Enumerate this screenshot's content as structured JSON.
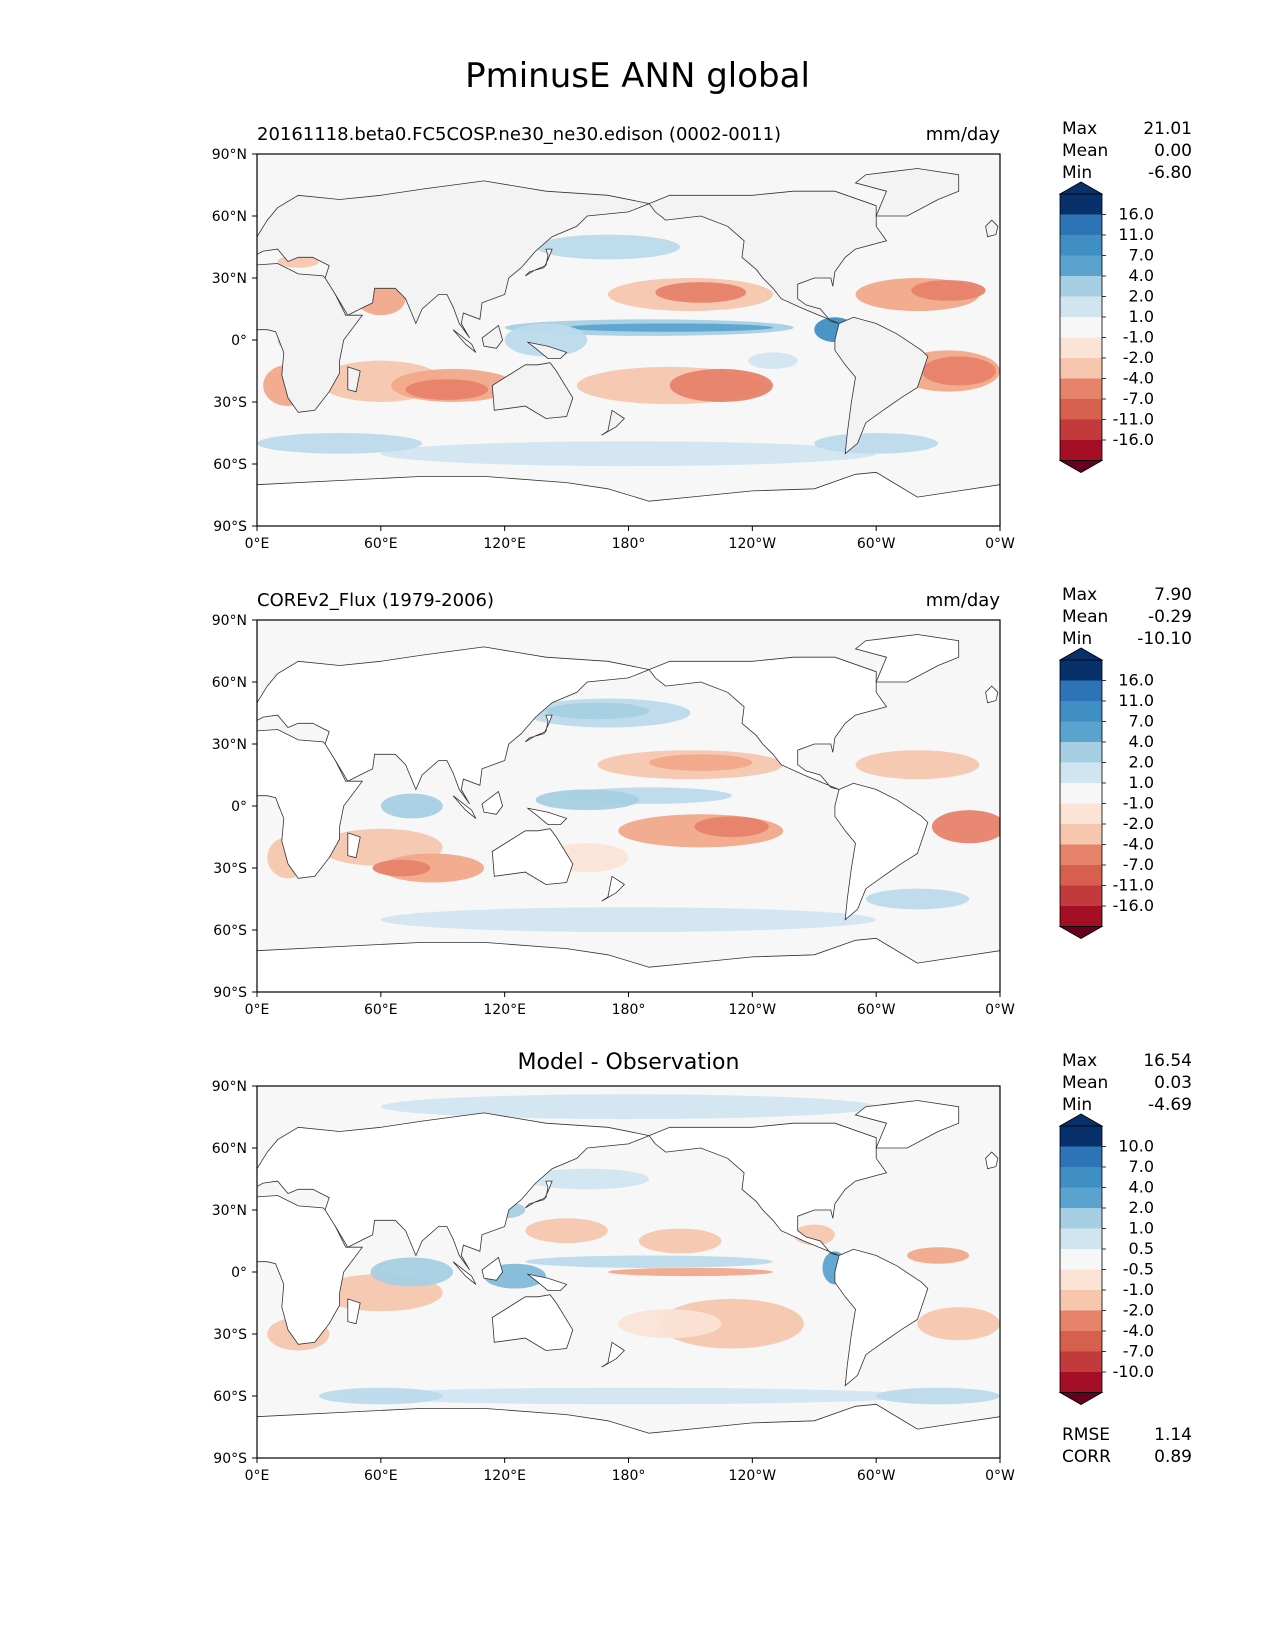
{
  "title": "PminusE ANN global",
  "colors": {
    "pos": [
      "#d1e5f0",
      "#bcdaeb",
      "#a6cfe3",
      "#82bad9",
      "#5ba3cf",
      "#3f8ec4",
      "#2c74b5",
      "#1f5ea6",
      "#08306b"
    ],
    "neg": [
      "#fbe3d6",
      "#f6c6ae",
      "#f1a88a",
      "#e7826a",
      "#d6604d",
      "#c23a3b",
      "#a50f26",
      "#67001f"
    ],
    "mid": "#f7f7f7",
    "land": "#ffffff",
    "coast": "#333333"
  },
  "axes": {
    "lat_ticks": [
      "90°N",
      "60°N",
      "30°N",
      "0°",
      "30°S",
      "60°S",
      "90°S"
    ],
    "lon_ticks": [
      "0°E",
      "60°E",
      "120°E",
      "180°",
      "120°W",
      "60°W",
      "0°W"
    ]
  },
  "panels": [
    {
      "title_left": "20161118.beta0.FC5COSP.ne30_ne30.edison (0002-0011)",
      "title_right": "mm/day",
      "title_center": "",
      "stats": [
        {
          "label": "Max",
          "value": "21.01"
        },
        {
          "label": "Mean",
          "value": "0.00"
        },
        {
          "label": "Min",
          "value": "-6.80"
        }
      ],
      "extra_stats": [],
      "colorbar_labels": [
        "16.0",
        "11.0",
        "7.0",
        "4.0",
        "2.0",
        "1.0",
        "-1.0",
        "-2.0",
        "-4.0",
        "-7.0",
        "-11.0",
        "-16.0"
      ]
    },
    {
      "title_left": "COREv2_Flux (1979-2006)",
      "title_right": "mm/day",
      "title_center": "",
      "stats": [
        {
          "label": "Max",
          "value": "7.90"
        },
        {
          "label": "Mean",
          "value": "-0.29"
        },
        {
          "label": "Min",
          "value": "-10.10"
        }
      ],
      "extra_stats": [],
      "colorbar_labels": [
        "16.0",
        "11.0",
        "7.0",
        "4.0",
        "2.0",
        "1.0",
        "-1.0",
        "-2.0",
        "-4.0",
        "-7.0",
        "-11.0",
        "-16.0"
      ]
    },
    {
      "title_left": "",
      "title_right": "",
      "title_center": "Model - Observation",
      "stats": [
        {
          "label": "Max",
          "value": "16.54"
        },
        {
          "label": "Mean",
          "value": "0.03"
        },
        {
          "label": "Min",
          "value": "-4.69"
        }
      ],
      "extra_stats": [
        {
          "label": "RMSE",
          "value": "1.14"
        },
        {
          "label": "CORR",
          "value": "0.89"
        }
      ],
      "colorbar_labels": [
        "10.0",
        "7.0",
        "4.0",
        "2.0",
        "1.0",
        "0.5",
        "-0.5",
        "-1.0",
        "-2.0",
        "-4.0",
        "-7.0",
        "-10.0"
      ]
    }
  ]
}
